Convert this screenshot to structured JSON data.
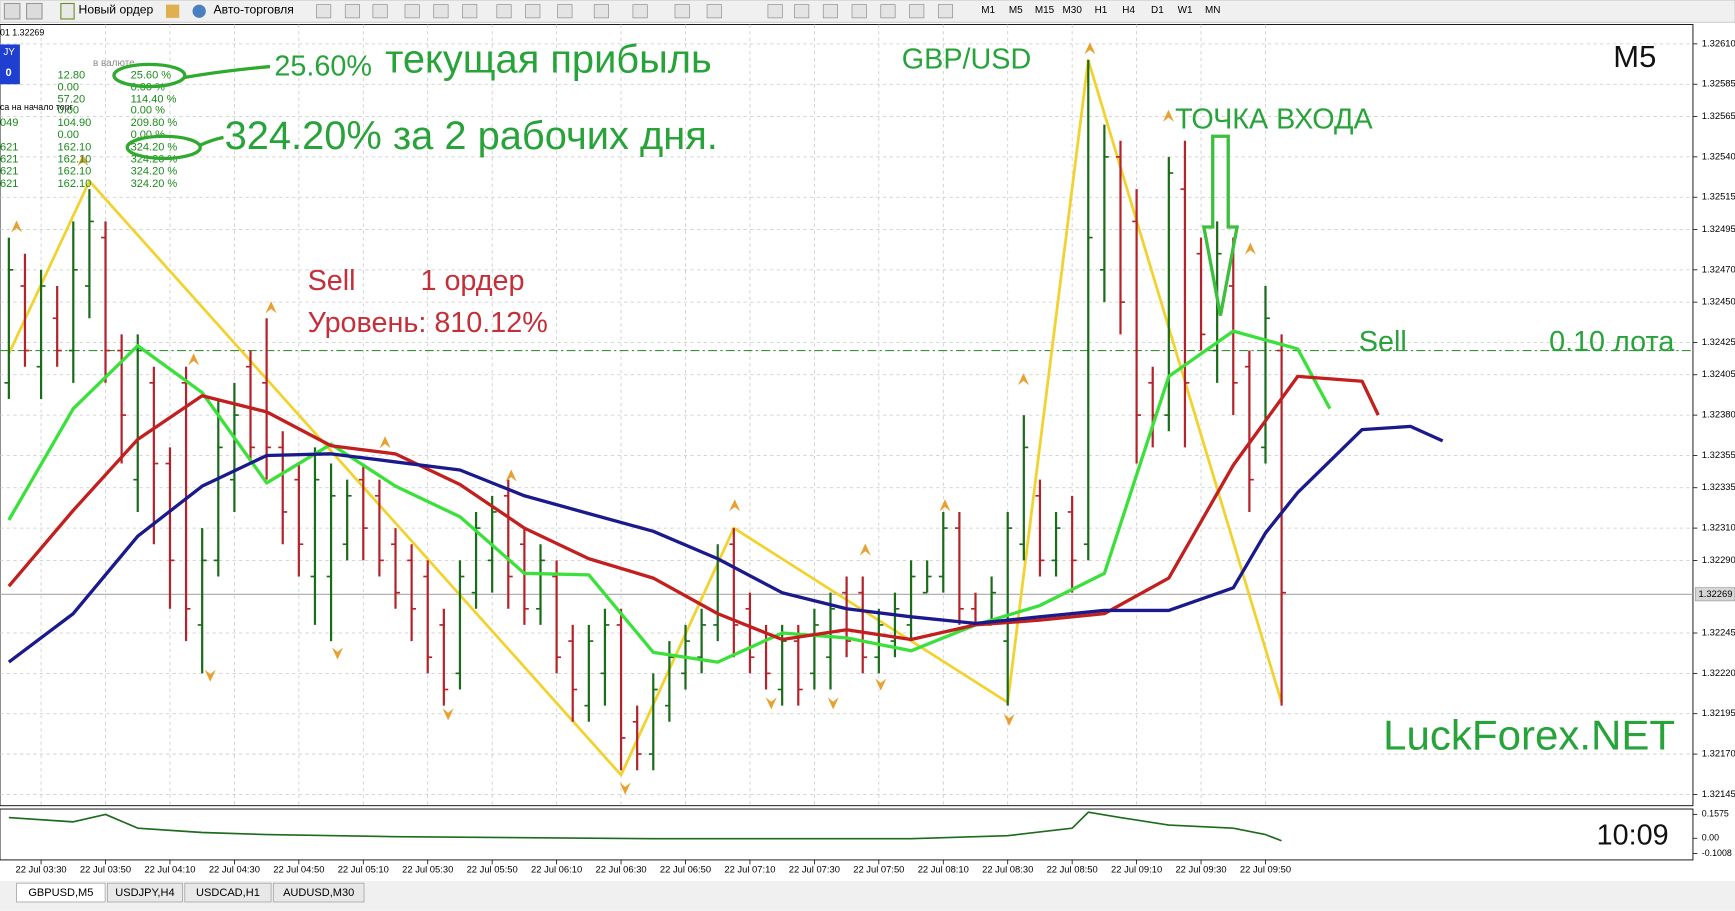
{
  "toolbar": {
    "new_order": "Новый ордер",
    "auto_trading": "Авто-торговля",
    "timeframes": [
      "M1",
      "M5",
      "M15",
      "M30",
      "H1",
      "H4",
      "D1",
      "W1",
      "MN"
    ]
  },
  "info_panel": {
    "top_line": "01 1.32269",
    "badge": "JY",
    "badge_value": "0",
    "column_header": "в валюте",
    "caption": "са на начало торг",
    "rows": [
      {
        "amount": "12.80",
        "percent": "25.60 %"
      },
      {
        "amount": "0.00",
        "percent": "0.00 %"
      },
      {
        "amount": "57.20",
        "percent": "114.40 %"
      },
      {
        "amount": "0.00",
        "percent": "0.00 %"
      },
      {
        "id": "049",
        "amount": "104.90",
        "percent": "209.80 %"
      },
      {
        "amount": "0.00",
        "percent": "0.00 %"
      },
      {
        "id": "621",
        "amount": "162.10",
        "percent": "324.20 %"
      },
      {
        "id": "621",
        "amount": "162.10",
        "percent": "324.20 %"
      },
      {
        "id": "621",
        "amount": "162.10",
        "percent": "324.20 %"
      },
      {
        "id": "621",
        "amount": "162.10",
        "percent": "324.20 %"
      }
    ]
  },
  "annotations": {
    "profit_value": "25.60%",
    "profit_text": "текущая прибыль",
    "total": "324.20% за 2 рабочих дня.",
    "symbol": "GBP/USD",
    "timeframe": "M5",
    "entry": "ТОЧКА ВХОДА",
    "sell": "Sell",
    "orders": "1 ордер",
    "level": "Уровень: 810.12%",
    "site": "LuckForex.NET"
  },
  "tabs": [
    "GBPUSD,M5",
    "USDJPY,H4",
    "USDCAD,H1",
    "AUDUSD,M30"
  ],
  "chart_data": {
    "type": "ohlc",
    "categories": [
      null,
      null,
      "22 Jul 03:30",
      null,
      null,
      null,
      "22 Jul 03:50",
      null,
      null,
      null,
      "22 Jul 04:10",
      null,
      null,
      null,
      "22 Jul 04:30",
      null,
      null,
      null,
      "22 Jul 04:50",
      null,
      null,
      null,
      "22 Jul 05:10",
      null,
      null,
      null,
      "22 Jul 05:30",
      null,
      null,
      null,
      "22 Jul 05:50",
      null,
      null,
      null,
      "22 Jul 06:10",
      null,
      null,
      null,
      "22 Jul 06:30",
      null,
      null,
      null,
      "22 Jul 06:50",
      null,
      null,
      null,
      "22 Jul 07:10",
      null,
      null,
      null,
      "22 Jul 07:30",
      null,
      null,
      null,
      "22 Jul 07:50",
      null,
      null,
      null,
      "22 Jul 08:10",
      null,
      null,
      null,
      "22 Jul 08:30",
      null,
      null,
      null,
      "22 Jul 08:50",
      null,
      null,
      null,
      "22 Jul 09:10",
      null,
      null,
      null,
      "22 Jul 09:30",
      null,
      null,
      null,
      "22 Jul 09:50",
      null
    ],
    "open": [
      1.324,
      1.3246,
      1.3241,
      1.3244,
      1.3242,
      1.3246,
      1.3249,
      1.3242,
      1.3234,
      1.324,
      1.3235,
      1.324,
      1.3225,
      1.3229,
      1.3234,
      1.3241,
      1.324,
      1.3236,
      1.3234,
      1.3228,
      1.3228,
      1.323,
      1.3234,
      1.3233,
      1.323,
      1.3229,
      1.3228,
      1.3225,
      1.3222,
      1.3227,
      1.3229,
      1.3233,
      1.323,
      1.3226,
      1.3228,
      1.3224,
      1.322,
      1.3222,
      1.3225,
      1.3219,
      1.3217,
      1.322,
      1.3222,
      1.3223,
      1.3225,
      1.323,
      1.3226,
      1.3224,
      1.3221,
      1.3224,
      1.3222,
      1.3223,
      1.3227,
      1.3227,
      1.3223,
      1.3224,
      1.3225,
      1.3227,
      1.3228,
      1.3231,
      1.3226,
      1.3225,
      1.3224,
      1.323,
      1.3233,
      1.3229,
      1.3232,
      1.323,
      1.3247,
      1.3254,
      1.325,
      1.324,
      1.3238,
      1.3252,
      1.3248,
      1.3242,
      1.3246,
      1.3241,
      1.3236,
      1.3242
    ],
    "high": [
      1.3249,
      1.3248,
      1.3247,
      1.3246,
      1.325,
      1.3252,
      1.325,
      1.3243,
      1.3243,
      1.3241,
      1.3236,
      1.3241,
      1.3231,
      1.3239,
      1.324,
      1.3242,
      1.3244,
      1.3237,
      1.3235,
      1.3236,
      1.3235,
      1.3234,
      1.3235,
      1.3234,
      1.3231,
      1.323,
      1.3229,
      1.3226,
      1.3229,
      1.3232,
      1.3233,
      1.3234,
      1.3231,
      1.323,
      1.3229,
      1.3225,
      1.3225,
      1.3226,
      1.3226,
      1.322,
      1.3222,
      1.3224,
      1.3225,
      1.3226,
      1.323,
      1.3231,
      1.3227,
      1.3225,
      1.3225,
      1.3225,
      1.3226,
      1.3227,
      1.3228,
      1.3228,
      1.3226,
      1.3227,
      1.3229,
      1.3229,
      1.3232,
      1.3232,
      1.3227,
      1.3228,
      1.3232,
      1.3238,
      1.3234,
      1.3232,
      1.3233,
      1.326,
      1.3256,
      1.3255,
      1.3252,
      1.3241,
      1.3254,
      1.3255,
      1.3249,
      1.325,
      1.3249,
      1.3242,
      1.3246,
      1.3243
    ],
    "low": [
      1.3239,
      1.3241,
      1.3239,
      1.3241,
      1.324,
      1.3244,
      1.324,
      1.3235,
      1.3232,
      1.323,
      1.3226,
      1.3224,
      1.3222,
      1.3228,
      1.3232,
      1.3235,
      1.3234,
      1.323,
      1.3228,
      1.3225,
      1.3224,
      1.3229,
      1.3229,
      1.3228,
      1.3226,
      1.3224,
      1.3222,
      1.322,
      1.3221,
      1.3226,
      1.3227,
      1.3226,
      1.3225,
      1.3225,
      1.3222,
      1.3219,
      1.3219,
      1.322,
      1.3216,
      1.3216,
      1.3216,
      1.3219,
      1.3221,
      1.3222,
      1.3224,
      1.3223,
      1.3222,
      1.3221,
      1.322,
      1.322,
      1.3221,
      1.3221,
      1.3223,
      1.3222,
      1.3222,
      1.3223,
      1.3224,
      1.3227,
      1.3227,
      1.3225,
      1.3225,
      1.3225,
      1.322,
      1.3229,
      1.3228,
      1.3228,
      1.3227,
      1.3229,
      1.3245,
      1.3243,
      1.3235,
      1.3236,
      1.3237,
      1.3236,
      1.3242,
      1.324,
      1.3238,
      1.3232,
      1.3235,
      1.322
    ],
    "close": [
      1.3247,
      1.3242,
      1.3246,
      1.3242,
      1.3247,
      1.325,
      1.3242,
      1.3238,
      1.3242,
      1.3235,
      1.3229,
      1.3226,
      1.3229,
      1.3236,
      1.3238,
      1.3236,
      1.3236,
      1.3232,
      1.323,
      1.3234,
      1.3233,
      1.3233,
      1.3231,
      1.3229,
      1.3227,
      1.3226,
      1.3223,
      1.3221,
      1.3228,
      1.3231,
      1.3232,
      1.3228,
      1.3226,
      1.3229,
      1.3223,
      1.3221,
      1.3224,
      1.3225,
      1.3218,
      1.3217,
      1.3221,
      1.3223,
      1.3224,
      1.3225,
      1.3229,
      1.3225,
      1.3223,
      1.3222,
      1.3224,
      1.3221,
      1.3225,
      1.3226,
      1.3224,
      1.3223,
      1.3225,
      1.3226,
      1.3228,
      1.3228,
      1.3231,
      1.3226,
      1.3225,
      1.3227,
      1.3231,
      1.3236,
      1.3229,
      1.3231,
      1.3229,
      1.3249,
      1.3254,
      1.3245,
      1.3238,
      1.3238,
      1.3253,
      1.324,
      1.3243,
      1.3248,
      1.324,
      1.3234,
      1.3244,
      1.3227
    ],
    "up_color": "#1a6b1a",
    "down_color": "#b3232b",
    "ylim": [
      1.32138,
      1.32622
    ],
    "yticks": [
      {
        "value": 1.3261,
        "label": "1.32610"
      },
      1.32585,
      1.32565,
      {
        "value": 1.3254,
        "label": "1.32540"
      },
      1.32515,
      1.32495,
      {
        "value": 1.3247,
        "label": "1.32470"
      },
      {
        "value": 1.3245,
        "label": "1.32450"
      },
      1.32425,
      1.32405,
      {
        "value": 1.3238,
        "label": "1.32380"
      },
      1.32355,
      1.32335,
      {
        "value": 1.3231,
        "label": "1.32310"
      },
      {
        "value": 1.3229,
        "label": "1.32290"
      },
      1.32245,
      {
        "value": 1.3222,
        "label": "1.32220"
      },
      1.32195,
      {
        "value": 1.3217,
        "label": "1.32170"
      },
      1.32145
    ],
    "grid": true,
    "moving_averages": [
      {
        "color": "#3be03b",
        "x": [
          0,
          4,
          8,
          12,
          16,
          20,
          24,
          28,
          32,
          36,
          40,
          44,
          48,
          52,
          56,
          60,
          64,
          68,
          72,
          76,
          80,
          82
        ],
        "values": [
          1.32315,
          1.32384,
          1.32423,
          1.32394,
          1.32338,
          1.32362,
          1.32336,
          1.32317,
          1.32282,
          1.32281,
          1.32233,
          1.32227,
          1.32245,
          1.32242,
          1.32234,
          1.3225,
          1.32262,
          1.32282,
          1.32404,
          1.32432,
          1.32421,
          1.32384
        ]
      },
      {
        "color": "#c21f1f",
        "x": [
          0,
          4,
          8,
          12,
          16,
          20,
          24,
          28,
          32,
          36,
          40,
          44,
          48,
          52,
          56,
          60,
          64,
          68,
          72,
          76,
          80,
          84,
          85
        ],
        "values": [
          1.32274,
          1.32321,
          1.32365,
          1.32392,
          1.32382,
          1.32361,
          1.32356,
          1.32337,
          1.3231,
          1.32291,
          1.32279,
          1.32257,
          1.32241,
          1.32247,
          1.32241,
          1.3225,
          1.32253,
          1.32257,
          1.32279,
          1.32349,
          1.32404,
          1.32401,
          1.3238
        ]
      },
      {
        "color": "#1a1a8c",
        "x": [
          0,
          4,
          8,
          12,
          16,
          20,
          24,
          28,
          32,
          36,
          40,
          44,
          48,
          52,
          56,
          60,
          64,
          68,
          72,
          76,
          78,
          80,
          84,
          87,
          89
        ],
        "values": [
          1.32227,
          1.32257,
          1.32305,
          1.32336,
          1.32355,
          1.32356,
          1.32351,
          1.32346,
          1.3233,
          1.32319,
          1.32308,
          1.32291,
          1.3227,
          1.3226,
          1.32255,
          1.32251,
          1.32255,
          1.32259,
          1.32259,
          1.32273,
          1.32307,
          1.32332,
          1.32371,
          1.32373,
          1.32364
        ]
      }
    ],
    "zigzag": {
      "color": "#f2d22e",
      "x": [
        0,
        5,
        38,
        45,
        62,
        67,
        79
      ],
      "values": [
        1.32418,
        1.32525,
        1.32157,
        1.3231,
        1.32202,
        1.326,
        1.32202
      ]
    },
    "current_price": 1.32269,
    "order": {
      "side": "Sell",
      "lots": "0.10 лота",
      "price": 1.3242,
      "color": "#3f8f3f"
    },
    "oscillator": {
      "color": "#1e6b1e",
      "ylim": [
        -0.143,
        0.1925
      ],
      "yticks": [
        0.1575,
        {
          "value": 0,
          "label": "0.00"
        },
        -0.1008
      ],
      "x": [
        0,
        4,
        6,
        8,
        12,
        16,
        24,
        40,
        56,
        62,
        66,
        67,
        69,
        72,
        76,
        78,
        79
      ],
      "values": [
        0.136,
        0.108,
        0.157,
        0.066,
        0.038,
        0.024,
        0.01,
        -0.003,
        -0.003,
        0.017,
        0.066,
        0.171,
        0.136,
        0.087,
        0.066,
        0.024,
        -0.017
      ]
    },
    "clock": "10:09"
  }
}
